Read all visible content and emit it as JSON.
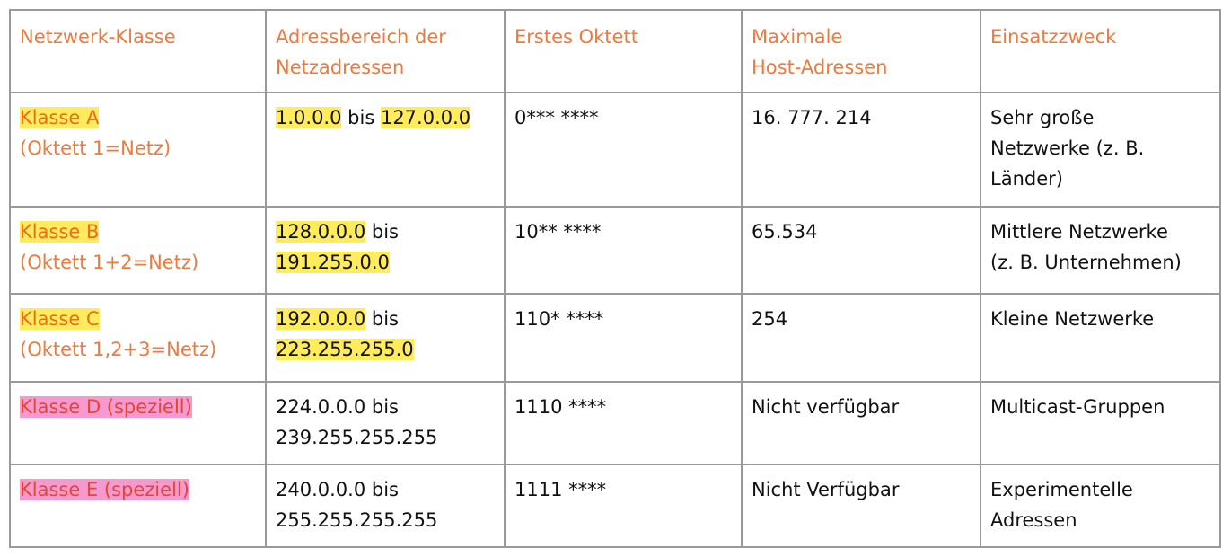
{
  "headers": {
    "klasse": "Netzwerk-Klasse",
    "bereich_1": "Adressbereich der",
    "bereich_2": "Netzadressen",
    "oktett": "Erstes Oktett",
    "hosts_1": "Maximale",
    "hosts_2": "Host-Adressen",
    "zweck": "Einsatzzweck"
  },
  "rows": [
    {
      "name": "Klasse A",
      "sub": "(Oktett 1=Netz)",
      "range_start": "1.0.0.0",
      "range_bis": " bis ",
      "range_end": "127.0.0.0",
      "oktett": "0*** ****",
      "hosts": "16. 777. 214",
      "zweck_1": "Sehr große",
      "zweck_2": "Netzwerke (z. B.",
      "zweck_3": "Länder)"
    },
    {
      "name": "Klasse B",
      "sub": "(Oktett 1+2=Netz)",
      "range_start": "128.0.0.0",
      "range_bis": " bis",
      "range_end": "191.255.0.0",
      "oktett": "10** ****",
      "hosts": "65.534",
      "zweck_1": "Mittlere Netzwerke",
      "zweck_2": "(z. B. Unternehmen)"
    },
    {
      "name": "Klasse C",
      "sub": "(Oktett 1,2+3=Netz)",
      "range_start": "192.0.0.0",
      "range_bis": " bis",
      "range_end": "223.255.255.0",
      "oktett": "110* ****",
      "hosts": "254",
      "zweck_1": "Kleine Netzwerke"
    },
    {
      "name": "Klasse D (speziell)",
      "range_1": "224.0.0.0 bis",
      "range_2": "239.255.255.255",
      "oktett": "1110 ****",
      "hosts": "Nicht verfügbar",
      "zweck_1": "Multicast-Gruppen"
    },
    {
      "name": "Klasse E (speziell)",
      "range_1": "240.0.0.0 bis",
      "range_2": "255.255.255.255",
      "oktett": "1111 ****",
      "hosts": "Nicht Verfügbar",
      "zweck_1": "Experimentelle",
      "zweck_2": "Adressen"
    }
  ],
  "colors": {
    "header_text": "#ee7a3c",
    "highlight_yellow": "#ffec5c",
    "highlight_pink": "#f59ad0",
    "border": "#9a9a9a"
  }
}
